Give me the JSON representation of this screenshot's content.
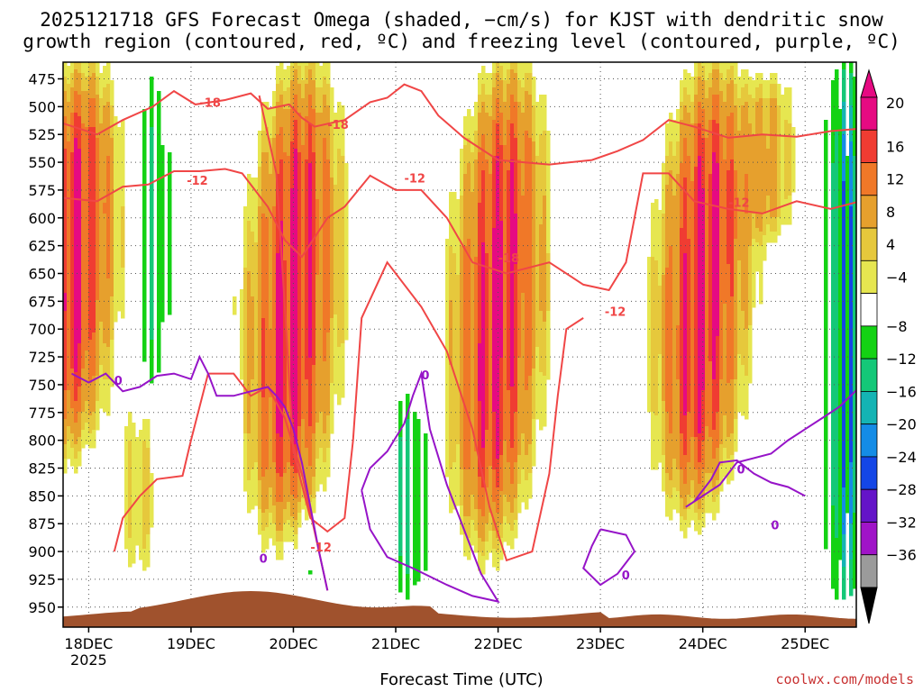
{
  "chart_data": {
    "type": "heatmap",
    "title_line1": "2025121718 GFS Forecast Omega (shaded, −cm/s) for KJST with dendritic snow",
    "title_line2": "growth region (contoured, red, ºC) and freezing level (contoured, purple, ºC)",
    "xlabel": "Forecast Time (UTC)",
    "y_ticks": [
      475,
      500,
      525,
      550,
      575,
      600,
      625,
      650,
      675,
      700,
      725,
      750,
      775,
      800,
      825,
      850,
      875,
      900,
      925,
      950
    ],
    "y_range_hpa": [
      460,
      968
    ],
    "x_range_hours": [
      -6,
      180
    ],
    "x_ticks": [
      {
        "hour": 0,
        "label": "18DEC",
        "sub": "2025"
      },
      {
        "hour": 24,
        "label": "19DEC",
        "sub": ""
      },
      {
        "hour": 48,
        "label": "20DEC",
        "sub": ""
      },
      {
        "hour": 72,
        "label": "21DEC",
        "sub": ""
      },
      {
        "hour": 96,
        "label": "22DEC",
        "sub": ""
      },
      {
        "hour": 120,
        "label": "23DEC",
        "sub": ""
      },
      {
        "hour": 144,
        "label": "24DEC",
        "sub": ""
      },
      {
        "hour": 168,
        "label": "25DEC",
        "sub": ""
      }
    ],
    "colorbar": {
      "labels": [
        "20",
        "16",
        "12",
        "8",
        "4",
        "−4",
        "−8",
        "−12",
        "−16",
        "−20",
        "−24",
        "−28",
        "−32",
        "−36"
      ],
      "colors": [
        "#e60a82",
        "#f03c32",
        "#f07828",
        "#e6a02d",
        "#e6c83c",
        "#e6e650",
        "#ffffff",
        "#14d214",
        "#14c878",
        "#14b4b4",
        "#148ce6",
        "#1446e6",
        "#6414c8",
        "#a014c8",
        "#9b9b9b"
      ]
    },
    "surface_color": "#a0522d",
    "omega_blobs": [
      {
        "center_hour": -4,
        "top_hpa": 468,
        "bottom_hpa": 810,
        "peak": 20
      },
      {
        "center_hour": 48,
        "top_hpa": 468,
        "bottom_hpa": 880,
        "peak": 20
      },
      {
        "center_hour": 96,
        "top_hpa": 468,
        "bottom_hpa": 890,
        "peak": 20
      },
      {
        "center_hour": 144,
        "top_hpa": 468,
        "bottom_hpa": 860,
        "peak": 20
      },
      {
        "center_hour": 12,
        "top_hpa": 760,
        "bottom_hpa": 930,
        "peak": 6
      },
      {
        "center_hour": 160,
        "top_hpa": 468,
        "bottom_hpa": 620,
        "peak": 8
      }
    ],
    "sink_regions": [
      {
        "center_hour": 15,
        "top_hpa": 468,
        "bottom_hpa": 760,
        "peak": -10
      },
      {
        "center_hour": 75,
        "top_hpa": 760,
        "bottom_hpa": 940,
        "peak": -12
      },
      {
        "center_hour": 53,
        "top_hpa": 860,
        "bottom_hpa": 940,
        "peak": -6
      },
      {
        "center_hour": 178,
        "top_hpa": 468,
        "bottom_hpa": 940,
        "peak": -24
      }
    ],
    "contour_labels": {
      "dgz": [
        "-18",
        "-12",
        "-18",
        "-12",
        "-12",
        "-18",
        "-12",
        "-12"
      ],
      "freezing": [
        "0",
        "0",
        "0",
        "0",
        "0",
        "0"
      ]
    }
  },
  "credit": "coolwx.com/models"
}
